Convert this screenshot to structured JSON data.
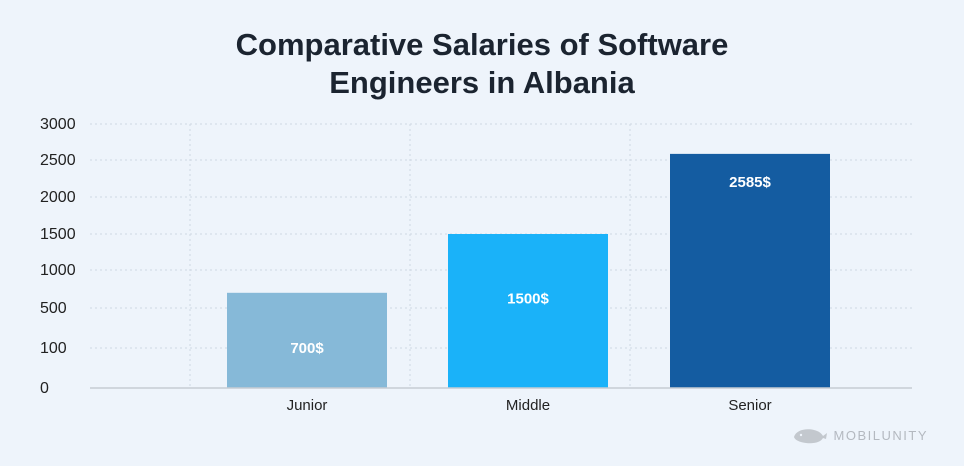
{
  "title_line1": "Comparative Salaries of Software",
  "title_line2": "Engineers in Albania",
  "watermark": "MOBILUNITY",
  "colors": {
    "junior": "#86b9d8",
    "middle": "#1ab2f9",
    "senior": "#145ca1",
    "grid": "#cfd8e3",
    "axis": "#c6ccd3",
    "background": "#eef4fb"
  },
  "chart_data": {
    "type": "bar",
    "title": "Comparative Salaries of Software Engineers in Albania",
    "xlabel": "",
    "ylabel": "",
    "categories": [
      "Junior",
      "Middle",
      "Senior"
    ],
    "values": [
      700,
      1500,
      2585
    ],
    "data_labels": [
      "700$",
      "1500$",
      "2585$"
    ],
    "y_tick_labels": [
      "0",
      "100",
      "500",
      "1000",
      "1500",
      "2000",
      "2500",
      "3000"
    ],
    "ylim": [
      0,
      3000
    ],
    "grid": true,
    "legend": "none"
  }
}
